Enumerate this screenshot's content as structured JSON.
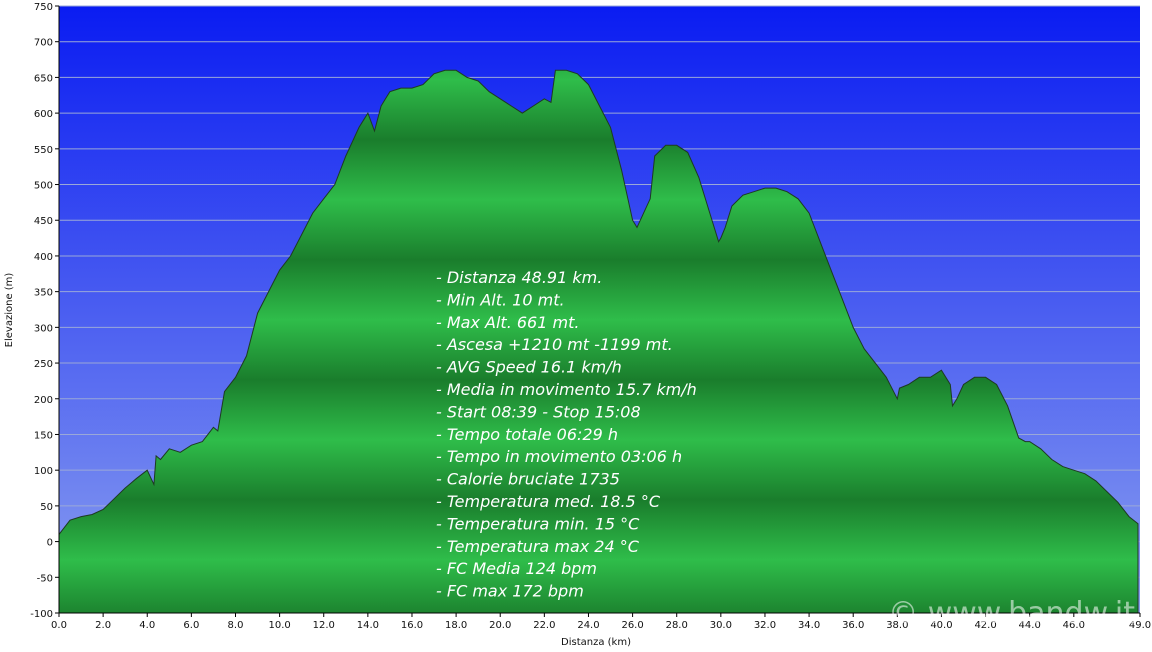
{
  "chart_data": {
    "type": "area",
    "xlabel": "Distanza  (km)",
    "ylabel": "Elevazione (m)",
    "xlim": [
      0,
      49
    ],
    "ylim": [
      -100,
      750
    ],
    "x_ticks": [
      "0.0",
      "2.0",
      "4.0",
      "6.0",
      "8.0",
      "10.0",
      "12.0",
      "14.0",
      "16.0",
      "18.0",
      "20.0",
      "22.0",
      "24.0",
      "26.0",
      "28.0",
      "30.0",
      "32.0",
      "34.0",
      "36.0",
      "38.0",
      "40.0",
      "42.0",
      "44.0",
      "46.0",
      "49.0"
    ],
    "y_ticks": [
      "750",
      "700",
      "650",
      "600",
      "550",
      "500",
      "450",
      "400",
      "350",
      "300",
      "250",
      "200",
      "150",
      "100",
      "50",
      "0",
      "-50",
      "-100"
    ],
    "grid": true,
    "colors": {
      "sky_top": "#0a1cf2",
      "sky_bottom": "#8a9ff0",
      "fill_dark": "#1a7d2c",
      "fill_light": "#2fbd4a",
      "line": "#1e3a22"
    },
    "series": [
      {
        "x": [
          0,
          0.5,
          1.0,
          1.5,
          2.0,
          2.5,
          3.0,
          3.5,
          4.0,
          4.3,
          4.4,
          4.6,
          5.0,
          5.5,
          6.0,
          6.5,
          7.0,
          7.2,
          7.5,
          8.0,
          8.5,
          9.0,
          9.5,
          10.0,
          10.5,
          11.0,
          11.5,
          12.0,
          12.5,
          13.0,
          13.3,
          13.6,
          13.8,
          14.0,
          14.3,
          14.6,
          14.8,
          15.0,
          15.5,
          16.0,
          16.5,
          17.0,
          17.5,
          18.0,
          18.5,
          19.0,
          19.5,
          20.0,
          20.5,
          21.0,
          21.5,
          22.0,
          22.3,
          22.5,
          23.0,
          23.5,
          24.0,
          24.5,
          25.0,
          25.5,
          26.0,
          26.2,
          26.5,
          26.8,
          27.0,
          27.5,
          28.0,
          28.5,
          29.0,
          29.5,
          29.9,
          30.0,
          30.2,
          30.5,
          31.0,
          31.5,
          32.0,
          32.5,
          33.0,
          33.5,
          34.0,
          34.5,
          35.0,
          35.5,
          36.0,
          36.5,
          37.0,
          37.5,
          38.0,
          38.1,
          38.5,
          39.0,
          39.5,
          40.0,
          40.4,
          40.5,
          40.7,
          41.0,
          41.5,
          42.0,
          42.5,
          43.0,
          43.5,
          43.8,
          44.0,
          44.5,
          45.0,
          45.5,
          46.0,
          46.5,
          47.0,
          47.5,
          48.0,
          48.5,
          48.91
        ],
        "y": [
          10,
          30,
          35,
          38,
          45,
          60,
          75,
          88,
          100,
          80,
          120,
          115,
          130,
          125,
          135,
          140,
          160,
          155,
          210,
          230,
          260,
          320,
          350,
          380,
          400,
          430,
          460,
          480,
          500,
          540,
          560,
          580,
          590,
          600,
          575,
          610,
          620,
          630,
          635,
          635,
          640,
          655,
          660,
          660,
          650,
          645,
          630,
          620,
          610,
          600,
          610,
          620,
          615,
          660,
          660,
          655,
          640,
          610,
          580,
          520,
          450,
          440,
          460,
          480,
          540,
          555,
          555,
          545,
          510,
          460,
          420,
          425,
          440,
          470,
          485,
          490,
          495,
          495,
          490,
          480,
          460,
          420,
          380,
          340,
          300,
          270,
          250,
          230,
          200,
          215,
          220,
          230,
          230,
          240,
          220,
          190,
          200,
          220,
          230,
          230,
          220,
          190,
          145,
          140,
          140,
          130,
          115,
          105,
          100,
          95,
          85,
          70,
          55,
          35,
          25
        ]
      }
    ],
    "annotations": [
      "- Distanza 48.91 km.",
      "- Min Alt. 10 mt.",
      "- Max Alt. 661 mt.",
      "- Ascesa +1210 mt -1199 mt.",
      "- AVG Speed 16.1 km/h",
      "- Media in movimento 15.7 km/h",
      "- Start 08:39 - Stop 15:08",
      "- Tempo totale 06:29 h",
      "- Tempo in movimento 03:06 h",
      "- Calorie bruciate 1735",
      "- Temperatura med. 18.5 °C",
      "- Temperatura min. 15 °C",
      "- Temperatura max 24 °C",
      "- FC Media 124 bpm",
      "- FC max 172 bpm"
    ],
    "watermark": "© www.bandw.it"
  }
}
